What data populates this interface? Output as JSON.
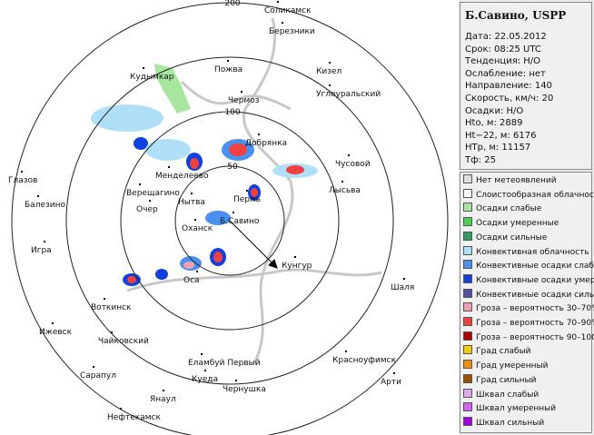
{
  "station": "Б.Савино, USPP",
  "info": [
    "Дата: 22.05.2012",
    "Срок: 08:25 UTC",
    "Тенденция: Н/О",
    "Ослабление: нет",
    "Направление: 140",
    "Скорость, км/ч: 20",
    "Осадки: Н/О",
    "Hto, м: 2889",
    "Ht−22, м: 6176",
    "НТр, м: 11157",
    "Тф: 25"
  ],
  "rings": [
    50,
    100,
    200
  ],
  "cities": [
    "Соликамск",
    "Березники",
    "Кудымкар",
    "Пожва",
    "Кизел",
    "Углеуральский",
    "Чермоз",
    "Добрянка",
    "Менделеево",
    "Чусовой",
    "Верещагино",
    "Нытва",
    "Пермь",
    "Глазов",
    "Лысьва",
    "Очер",
    "Балезино",
    "Б.Савино",
    "Оханск",
    "Кунгур",
    "Игра",
    "Оса",
    "Шаля",
    "Воткинск",
    "Ижевск",
    "Чайковский",
    "Еламбуй Первый",
    "Красноуфимск",
    "Сарапул",
    "Куеда",
    "Арти",
    "Чернушка",
    "Янаул",
    "Нефтекамск"
  ],
  "legend": [
    {
      "label": "Нет метеоявлений",
      "color": "#e0e0e0"
    },
    {
      "label": "Слоистообразная облачность",
      "color": "#ffffff"
    },
    {
      "label": "Осадки слабые",
      "color": "#a8e6a0"
    },
    {
      "label": "Осадки умеренные",
      "color": "#50d050"
    },
    {
      "label": "Осадки сильные",
      "color": "#30a060"
    },
    {
      "label": "Конвективная облачность",
      "color": "#b0e0f8"
    },
    {
      "label": "Конвективные осадки слабые",
      "color": "#4a90f0"
    },
    {
      "label": "Конвективные осадки умерен.",
      "color": "#1040e0"
    },
    {
      "label": "Конвективные осадки сильные",
      "color": "#5050a8"
    },
    {
      "label": "Гроза – вероятность 30–70%",
      "color": "#f0a0b0"
    },
    {
      "label": "Гроза – вероятность 70–90%",
      "color": "#f04040"
    },
    {
      "label": "Гроза – вероятность 90–100%",
      "color": "#b00000"
    },
    {
      "label": "Град слабый",
      "color": "#f0d000"
    },
    {
      "label": "Град умеренный",
      "color": "#f09000"
    },
    {
      "label": "Град сильный",
      "color": "#a05000"
    },
    {
      "label": "Шквал слабый",
      "color": "#e0a8f0"
    },
    {
      "label": "Шквал умеренный",
      "color": "#d060f0"
    },
    {
      "label": "Шквал сильный",
      "color": "#a000e0"
    }
  ]
}
